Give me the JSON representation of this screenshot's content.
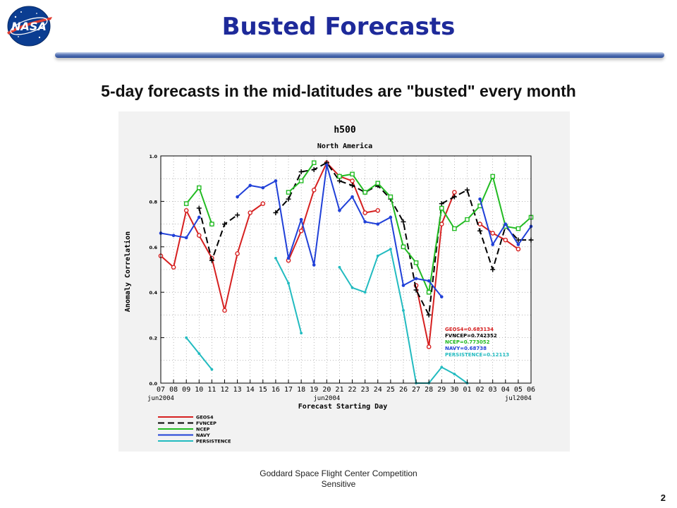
{
  "header": {
    "logo_text": "NASA",
    "title": "Busted Forecasts",
    "subtitle": "5-day forecasts in the mid-latitudes are \"busted\" every month"
  },
  "footer": {
    "line1": "Goddard Space Flight Center Competition",
    "line2": "Sensitive",
    "page_number": "2"
  },
  "colors": {
    "title": "#1e2a9a",
    "GEOS4": "#d62020",
    "FVNCEP": "#000000",
    "NCEP": "#22bb22",
    "NAVY": "#2040d8",
    "PERSISTENCE": "#22bbc0"
  },
  "chart_data": {
    "type": "line",
    "title": "h500",
    "subtitle": "North America",
    "xlabel": "Forecast Starting Day",
    "ylabel": "Anomaly Correlation",
    "ylim": [
      0,
      1
    ],
    "yticks": [
      "0.0",
      "0.2",
      "0.4",
      "0.6",
      "0.8",
      "1.0"
    ],
    "grid": true,
    "categories": [
      "07",
      "08",
      "09",
      "10",
      "11",
      "12",
      "13",
      "14",
      "15",
      "16",
      "17",
      "18",
      "19",
      "20",
      "21",
      "22",
      "23",
      "24",
      "25",
      "26",
      "27",
      "28",
      "29",
      "30",
      "01",
      "02",
      "03",
      "04",
      "05",
      "06"
    ],
    "month_labels": [
      {
        "at": "07",
        "text": "jun2004"
      },
      {
        "at": "20",
        "text": "jun2004"
      },
      {
        "at": "05",
        "text": "jul2004"
      }
    ],
    "series": [
      {
        "name": "GEOS4",
        "stat": "GEOS4=0.683134",
        "color": "#d62020",
        "dash": "",
        "marker": "circle",
        "values": [
          0.56,
          0.51,
          0.76,
          0.65,
          0.55,
          0.32,
          0.57,
          0.75,
          0.79,
          null,
          0.54,
          0.67,
          0.85,
          0.97,
          0.91,
          0.89,
          0.75,
          0.76,
          null,
          null,
          0.43,
          0.16,
          0.7,
          0.84,
          null,
          0.7,
          0.66,
          0.63,
          0.59,
          null
        ]
      },
      {
        "name": "FVNCEP",
        "stat": "FVNCEP=0.742352",
        "color": "#000000",
        "dash": "9,5",
        "marker": "plus",
        "values": [
          null,
          null,
          null,
          0.77,
          0.54,
          0.7,
          0.74,
          null,
          null,
          0.75,
          0.81,
          0.93,
          0.94,
          0.97,
          0.89,
          0.87,
          0.84,
          0.87,
          0.81,
          0.71,
          0.41,
          0.3,
          0.79,
          0.82,
          0.85,
          0.67,
          0.5,
          0.69,
          0.63,
          0.63
        ]
      },
      {
        "name": "NCEP",
        "stat": "NCEP=0.773052",
        "color": "#22bb22",
        "dash": "",
        "marker": "square",
        "values": [
          null,
          null,
          0.79,
          0.86,
          0.7,
          null,
          null,
          null,
          null,
          null,
          0.84,
          0.89,
          0.97,
          null,
          0.91,
          0.92,
          0.84,
          0.88,
          0.82,
          0.6,
          0.53,
          0.4,
          0.77,
          0.68,
          0.72,
          0.78,
          0.91,
          0.69,
          0.68,
          0.73
        ]
      },
      {
        "name": "NAVY",
        "stat": "NAVY=0.68738",
        "color": "#2040d8",
        "dash": "",
        "marker": "diamond",
        "values": [
          0.66,
          0.65,
          0.64,
          0.73,
          null,
          null,
          0.82,
          0.87,
          0.86,
          0.89,
          0.55,
          0.72,
          0.52,
          0.96,
          0.76,
          0.82,
          0.71,
          0.7,
          0.73,
          0.43,
          0.46,
          0.45,
          0.38,
          null,
          null,
          0.81,
          0.61,
          0.7,
          0.61,
          0.69
        ]
      },
      {
        "name": "PERSISTENCE",
        "stat": "PERSISTENCE=0.12113",
        "color": "#22bbc0",
        "dash": "",
        "marker": "dot",
        "values": [
          null,
          null,
          0.2,
          0.13,
          0.06,
          null,
          null,
          null,
          null,
          0.55,
          0.44,
          0.22,
          null,
          null,
          0.51,
          0.42,
          0.4,
          0.56,
          0.59,
          0.32,
          0.0,
          0.0,
          0.07,
          0.04,
          0.0,
          null,
          null,
          null,
          null,
          null
        ]
      }
    ]
  }
}
